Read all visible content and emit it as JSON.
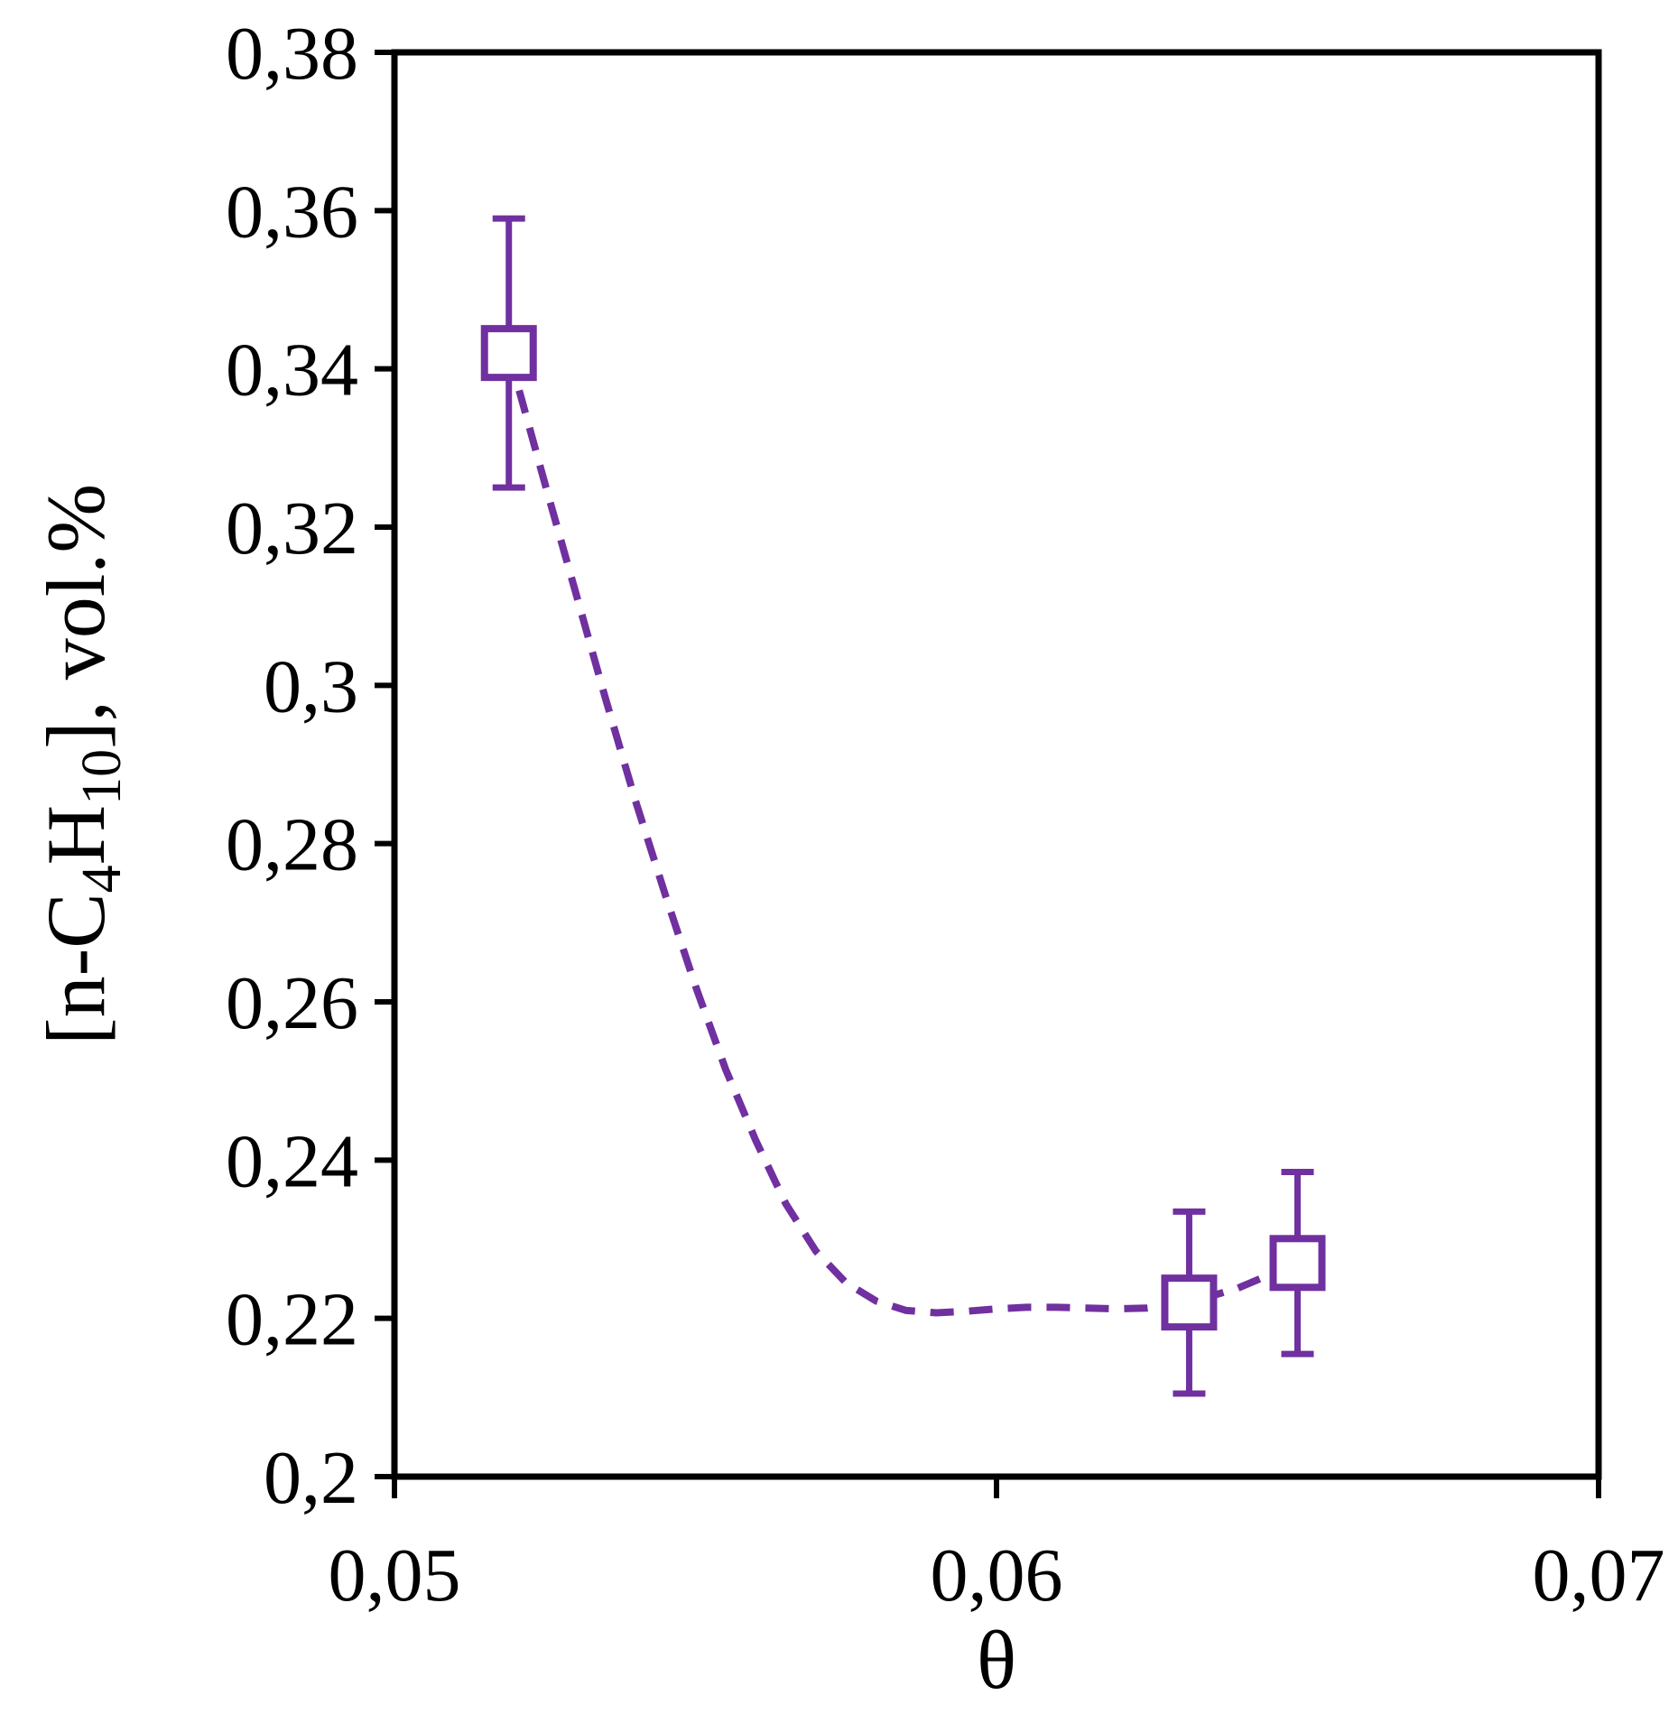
{
  "chart_data": {
    "type": "scatter",
    "xlabel": "θ",
    "ylabel": {
      "parts": [
        {
          "text": "[n-C",
          "sub": false
        },
        {
          "text": "4",
          "sub": true
        },
        {
          "text": "H",
          "sub": false
        },
        {
          "text": "10",
          "sub": true
        },
        {
          "text": "], vol.%",
          "sub": false
        }
      ]
    },
    "xlim": [
      0.05,
      0.07
    ],
    "ylim": [
      0.2,
      0.38
    ],
    "x_ticks": [
      0.05,
      0.06,
      0.07
    ],
    "x_tick_labels": [
      "0,05",
      "0,06",
      "0,07"
    ],
    "y_ticks": [
      0.2,
      0.22,
      0.24,
      0.26,
      0.28,
      0.3,
      0.32,
      0.34,
      0.36,
      0.38
    ],
    "y_tick_labels": [
      "0,2",
      "0,22",
      "0,24",
      "0,26",
      "0,28",
      "0,3",
      "0,32",
      "0,34",
      "0,36",
      "0,38"
    ],
    "grid": false,
    "legend": false,
    "colors": {
      "series": "#7030a0",
      "axes": "#000000"
    },
    "series": [
      {
        "marker": "open-square",
        "points": [
          {
            "x": 0.0519,
            "y": 0.342,
            "y_err": 0.017
          },
          {
            "x": 0.0632,
            "y": 0.222,
            "y_err": 0.0115
          },
          {
            "x": 0.065,
            "y": 0.227,
            "y_err": 0.0115
          }
        ]
      }
    ],
    "trend_line": {
      "style": "dashed",
      "points": [
        [
          0.0519,
          0.342
        ],
        [
          0.0525,
          0.3255
        ],
        [
          0.053,
          0.312
        ],
        [
          0.0535,
          0.2985
        ],
        [
          0.054,
          0.2855
        ],
        [
          0.0545,
          0.2735
        ],
        [
          0.055,
          0.262
        ],
        [
          0.0555,
          0.2515
        ],
        [
          0.056,
          0.2425
        ],
        [
          0.0565,
          0.2345
        ],
        [
          0.057,
          0.2285
        ],
        [
          0.0575,
          0.2245
        ],
        [
          0.058,
          0.2222
        ],
        [
          0.0585,
          0.221
        ],
        [
          0.059,
          0.2207
        ],
        [
          0.0595,
          0.2209
        ],
        [
          0.06,
          0.2212
        ],
        [
          0.0605,
          0.2214
        ],
        [
          0.061,
          0.2214
        ],
        [
          0.0615,
          0.2213
        ],
        [
          0.062,
          0.2212
        ],
        [
          0.0625,
          0.2213
        ],
        [
          0.0632,
          0.222
        ],
        [
          0.064,
          0.2238
        ],
        [
          0.065,
          0.227
        ]
      ]
    }
  }
}
